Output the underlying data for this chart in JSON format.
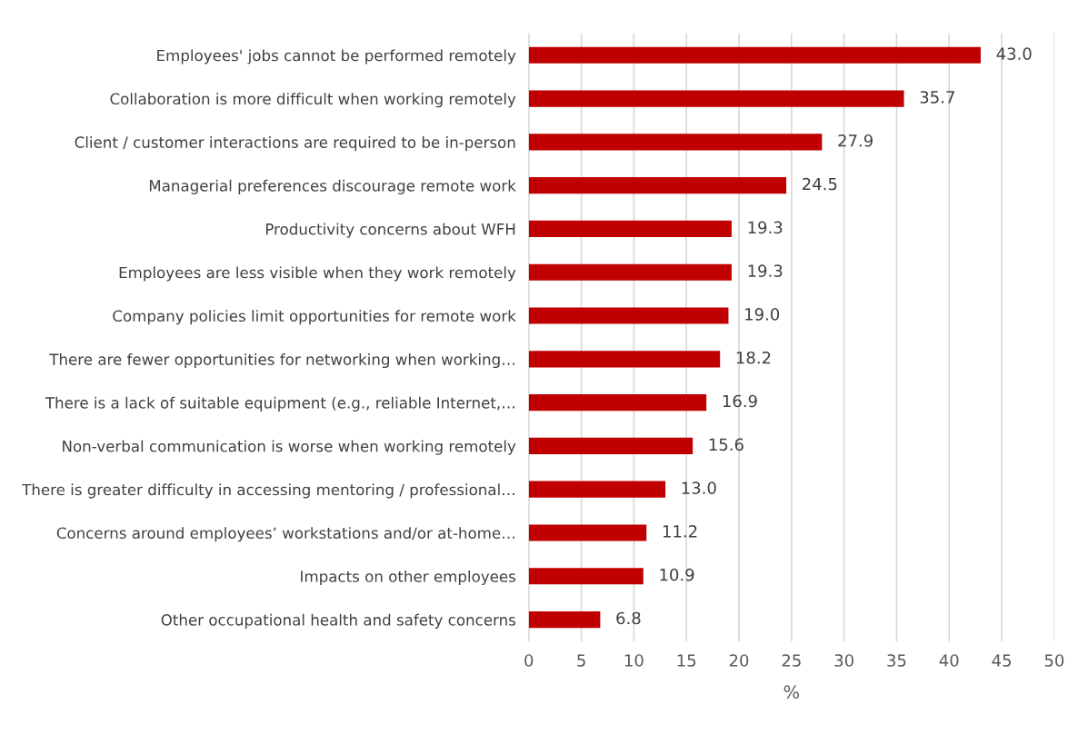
{
  "chart_data": {
    "type": "bar",
    "orientation": "horizontal",
    "xlabel": "%",
    "categories": [
      "Employees' jobs cannot be performed remotely",
      "Collaboration is more difficult when working remotely",
      "Client / customer interactions are required to be in-person",
      "Managerial preferences discourage remote work",
      "Productivity concerns about WFH",
      "Employees are less visible when they work remotely",
      "Company policies limit opportunities for remote work",
      "There are fewer opportunities for networking when working…",
      "There is a lack of suitable equipment (e.g., reliable Internet,…",
      "Non-verbal communication is worse when working remotely",
      "There is greater difficulty in accessing mentoring / professional…",
      "Concerns around employees’ workstations and/or at-home…",
      "Impacts on other employees",
      "Other occupational health and safety concerns"
    ],
    "values": [
      43.0,
      35.7,
      27.9,
      24.5,
      19.3,
      19.3,
      19.0,
      18.2,
      16.9,
      15.6,
      13.0,
      11.2,
      10.9,
      6.8
    ],
    "value_labels": [
      "43.0",
      "35.7",
      "27.9",
      "24.5",
      "19.3",
      "19.3",
      "19.0",
      "18.2",
      "16.9",
      "15.6",
      "13.0",
      "11.2",
      "10.9",
      "6.8"
    ],
    "color": "#c00000",
    "xlim": [
      0,
      50
    ],
    "xticks": [
      0,
      5,
      10,
      15,
      20,
      25,
      30,
      35,
      40,
      45,
      50
    ],
    "grid": "x",
    "legend": false
  }
}
